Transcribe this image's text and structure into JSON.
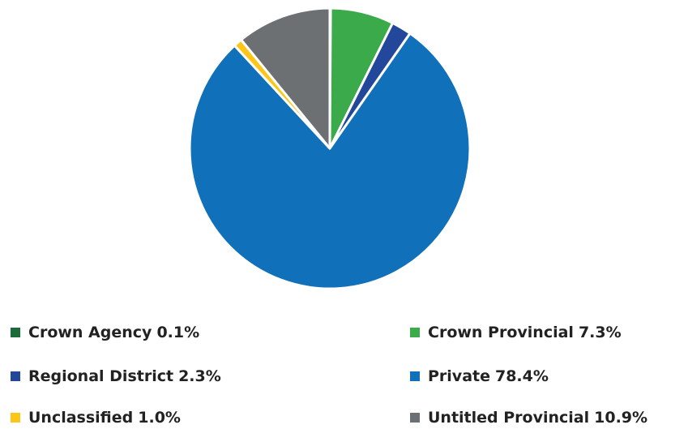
{
  "chart_data": {
    "type": "pie",
    "categories": [
      "Crown Agency",
      "Crown Provincial",
      "Regional District",
      "Private",
      "Unclassified",
      "Untitled Provincial"
    ],
    "values": [
      0.1,
      7.3,
      2.3,
      78.4,
      1.0,
      10.9
    ],
    "value_labels": [
      "0.1%",
      "7.3%",
      "2.3%",
      "78.4%",
      "1.0%",
      "10.9%"
    ],
    "colors": [
      "#1e6b3a",
      "#3aaa4a",
      "#23479a",
      "#1170ba",
      "#fdc515",
      "#6d7073"
    ],
    "legend": "bottom"
  }
}
